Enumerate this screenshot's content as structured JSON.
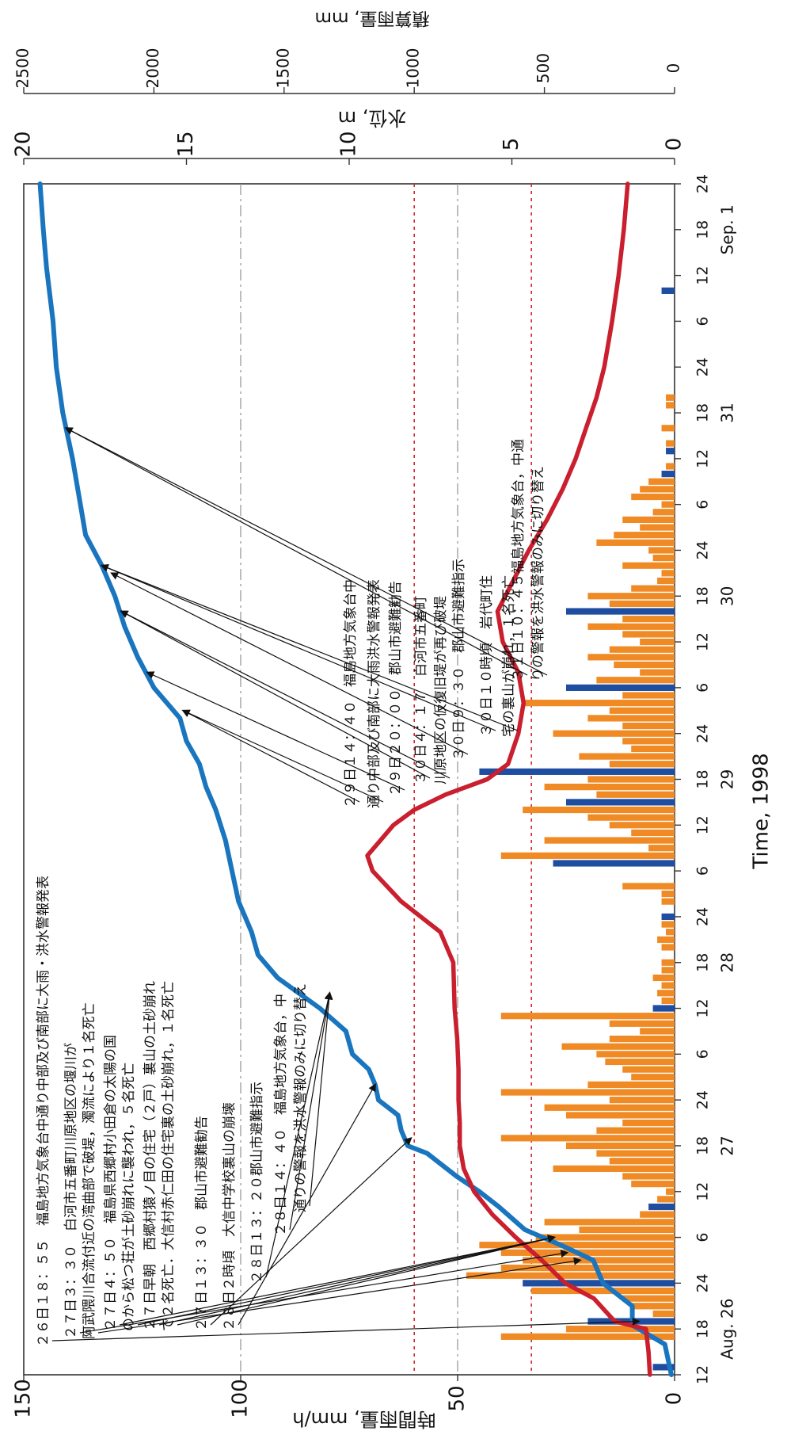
{
  "chart_data": {
    "type": "line",
    "xlabel": "Time, 1998",
    "ylabel_left": "時間雨量, mm/h",
    "ylabel_water": "水位, m",
    "ylabel_cum": "積算雨量, mm",
    "x_range_hours": [
      0,
      156
    ],
    "x_tick_hours": [
      "12",
      "18",
      "24",
      "6",
      "12",
      "18",
      "24",
      "6",
      "12",
      "18",
      "24",
      "6",
      "12",
      "18",
      "24",
      "6",
      "12",
      "18",
      "24",
      "6",
      "12",
      "18",
      "24",
      "6",
      "12",
      "18",
      "24"
    ],
    "day_labels": [
      "Aug. 26",
      "27",
      "28",
      "29",
      "30",
      "31",
      "Sep. 1"
    ],
    "y_left": {
      "range": [
        0,
        150
      ],
      "ticks": [
        "0",
        "50",
        "100",
        "150"
      ]
    },
    "y_water": {
      "range": [
        0,
        20
      ],
      "ticks": [
        "0",
        "5",
        "10",
        "15",
        "20"
      ]
    },
    "y_cum": {
      "range": [
        0,
        2500
      ],
      "ticks": [
        "0",
        "500",
        "1000",
        "1500",
        "2000",
        "2500"
      ]
    },
    "grid_left": [
      50,
      100
    ],
    "warning_levels_m": [
      4.4,
      8
    ],
    "series": [
      {
        "name": "",
        "color": "#1a75bf",
        "kind": "water_level",
        "x": [
          0,
          4,
          6,
          6.5,
          9,
          12,
          15,
          17,
          19,
          22,
          24,
          26,
          29,
          30,
          32,
          34,
          36,
          38,
          40,
          42,
          45,
          48,
          52,
          55,
          58,
          62,
          66,
          70,
          74,
          77,
          80,
          83,
          86,
          90,
          94,
          98,
          102,
          106,
          110,
          115,
          120,
          126,
          132,
          138,
          145,
          150,
          156
        ],
        "y": [
          0.1,
          0.3,
          1.1,
          1.3,
          1.3,
          2.2,
          2.5,
          3.5,
          4.6,
          5.4,
          6.0,
          6.7,
          7.6,
          8.2,
          8.4,
          8.5,
          9.1,
          9.2,
          9.4,
          9.9,
          10.1,
          10.9,
          12.2,
          12.8,
          13.0,
          13.4,
          13.6,
          13.8,
          14.1,
          14.4,
          14.6,
          15.0,
          15.2,
          16.0,
          16.5,
          16.9,
          17.2,
          17.6,
          18.1,
          18.3,
          18.5,
          18.8,
          19.0,
          19.1,
          19.3,
          19.4,
          19.5
        ]
      },
      {
        "name": "",
        "color": "#c91f2e",
        "kind": "cumulative_rain",
        "x": [
          0,
          3,
          6,
          7,
          10,
          12,
          15,
          18,
          21,
          24,
          27,
          30,
          33,
          36,
          40,
          44,
          48,
          54,
          58,
          62,
          66,
          68,
          70,
          72,
          74,
          76,
          78,
          80,
          84,
          88,
          92,
          96,
          100,
          104,
          108,
          112,
          116,
          120,
          124,
          128,
          132,
          138,
          144,
          150,
          156
        ],
        "y": [
          95,
          100,
          110,
          230,
          310,
          420,
          510,
          610,
          700,
          770,
          810,
          825,
          825,
          830,
          830,
          835,
          845,
          850,
          900,
          1050,
          1160,
          1180,
          1130,
          1080,
          1000,
          880,
          720,
          640,
          600,
          580,
          600,
          660,
          680,
          620,
          560,
          490,
          430,
          380,
          340,
          300,
          270,
          240,
          215,
          195,
          180
        ]
      }
    ],
    "rain_bars_mm_h": {
      "colors": {
        "orange": "#f08a24",
        "blue": "#1f4ea1"
      },
      "hours": [
        1,
        5,
        6,
        7,
        8,
        9,
        10,
        11,
        12,
        13,
        14,
        15,
        16,
        17,
        18,
        19,
        20,
        21,
        22,
        23,
        24,
        25,
        26,
        27,
        28,
        29,
        30,
        31,
        32,
        33,
        34,
        35,
        36,
        37,
        38,
        39,
        40,
        41,
        42,
        43,
        44,
        45,
        46,
        47,
        48,
        49,
        50,
        51,
        52,
        53,
        54,
        56,
        57,
        58,
        59,
        60,
        62,
        63,
        64,
        67,
        68,
        69,
        70,
        71,
        72,
        73,
        74,
        75,
        76,
        77,
        78,
        79,
        80,
        81,
        82,
        83,
        84,
        85,
        86,
        87,
        88,
        89,
        90,
        91,
        92,
        93,
        94,
        95,
        96,
        97,
        98,
        99,
        100,
        101,
        102,
        103,
        104,
        105,
        106,
        107,
        108,
        109,
        110,
        111,
        112,
        113,
        114,
        115,
        116,
        117,
        118,
        119,
        121,
        122,
        124,
        127,
        128,
        142
      ],
      "values": [
        5,
        40,
        25,
        20,
        5,
        10,
        12,
        33,
        35,
        48,
        40,
        35,
        40,
        45,
        32,
        22,
        30,
        8,
        6,
        4,
        2,
        10,
        12,
        28,
        15,
        18,
        25,
        40,
        18,
        12,
        25,
        30,
        15,
        40,
        20,
        10,
        12,
        16,
        18,
        26,
        15,
        8,
        15,
        40,
        5,
        3,
        4,
        3,
        5,
        3,
        3,
        3,
        4,
        2,
        3,
        3,
        3,
        3,
        12,
        28,
        40,
        6,
        30,
        10,
        15,
        20,
        35,
        25,
        18,
        30,
        20,
        45,
        15,
        22,
        10,
        12,
        28,
        12,
        20,
        15,
        35,
        12,
        25,
        18,
        8,
        14,
        20,
        15,
        8,
        12,
        20,
        12,
        25,
        15,
        20,
        10,
        4,
        3,
        12,
        5,
        6,
        18,
        14,
        8,
        12,
        5,
        3,
        10,
        8,
        6,
        3,
        2,
        2,
        2,
        3,
        2,
        2,
        3
      ],
      "blue_hours": [
        1,
        7,
        12,
        22,
        48,
        60,
        67,
        75,
        79,
        90,
        100,
        118,
        121,
        142
      ]
    },
    "annotations": [
      {
        "text": "２６日１８：５５　福島地方気象台中通り中部及び南部に大雨・洪水警報発表",
        "target": [
          7,
          1.1
        ]
      },
      {
        "text": "２７日３：３０　白河市五番町川原地区の堰川が",
        "target": [
          16,
          3.3
        ]
      },
      {
        "text": "阿武隈川合流付近の湾曲部で破堤，濁流により１名死亡",
        "target": [
          15,
          2.9
        ]
      },
      {
        "text": "２７日４：５０　福島県西郷村小田倉の太陽の国",
        "target": [
          18,
          3.7
        ]
      },
      {
        "text": "のから松つ荘が土砂崩れに襲われ，５名死亡",
        "target": [
          18,
          3.7
        ]
      },
      {
        "text": "２７日早朝　西郷村猿ノ目の住宅（２戸）裏山の土砂崩れ",
        "target": [
          18,
          3.7
        ]
      },
      {
        "text": "で２名死亡．大信村赤仁田の住宅裏の土砂崩れ，１名死亡",
        "target": [
          18,
          3.7
        ]
      },
      {
        "text": "２７日１３：３０　郡山市避難勧告",
        "target": [
          31,
          8.1
        ]
      },
      {
        "text": "２８日２時頃　大信中学校裏山の崩壊",
        "target": [
          38,
          9.2
        ]
      },
      {
        "text": "２８日１３：２０郡山市避難指示",
        "target": [
          50,
          10.6
        ]
      },
      {
        "text": "２８日１４：４０　福島地方気象台，中",
        "target": [
          50,
          10.6
        ]
      },
      {
        "text": "通りの警報を洪水警報のみに切り替え",
        "target": [
          50,
          10.6
        ]
      },
      {
        "text": "２９日１４：４０　福島地方気象台中",
        "target": [
          87,
          15.1
        ]
      },
      {
        "text": "通り中部及び南部に大雨洪水警報発表",
        "target": [
          87,
          15.1
        ]
      },
      {
        "text": "２９日２０：００　郡山市避難勧告",
        "target": [
          92,
          16.2
        ]
      },
      {
        "text": "３０日４：１７　白河市五番町",
        "target": [
          100,
          17.0
        ]
      },
      {
        "text": "川原地区の仮復旧堤が再び破堤",
        "target": [
          100,
          17.0
        ]
      },
      {
        "text": "３０日９：３０　郡山市避難指示",
        "target": [
          105,
          17.3
        ]
      },
      {
        "text": "３０日１０時頃　岩代町住",
        "target": [
          106,
          17.6
        ]
      },
      {
        "text": "宅の裏山が崩れ，１名死亡",
        "target": [
          106,
          17.6
        ]
      },
      {
        "text": "３１日１０：４５福島地方気象台，中通",
        "target": [
          124,
          18.7
        ]
      },
      {
        "text": "りの警報を洪水警報のみに切り替え",
        "target": [
          124,
          18.7
        ]
      }
    ]
  }
}
